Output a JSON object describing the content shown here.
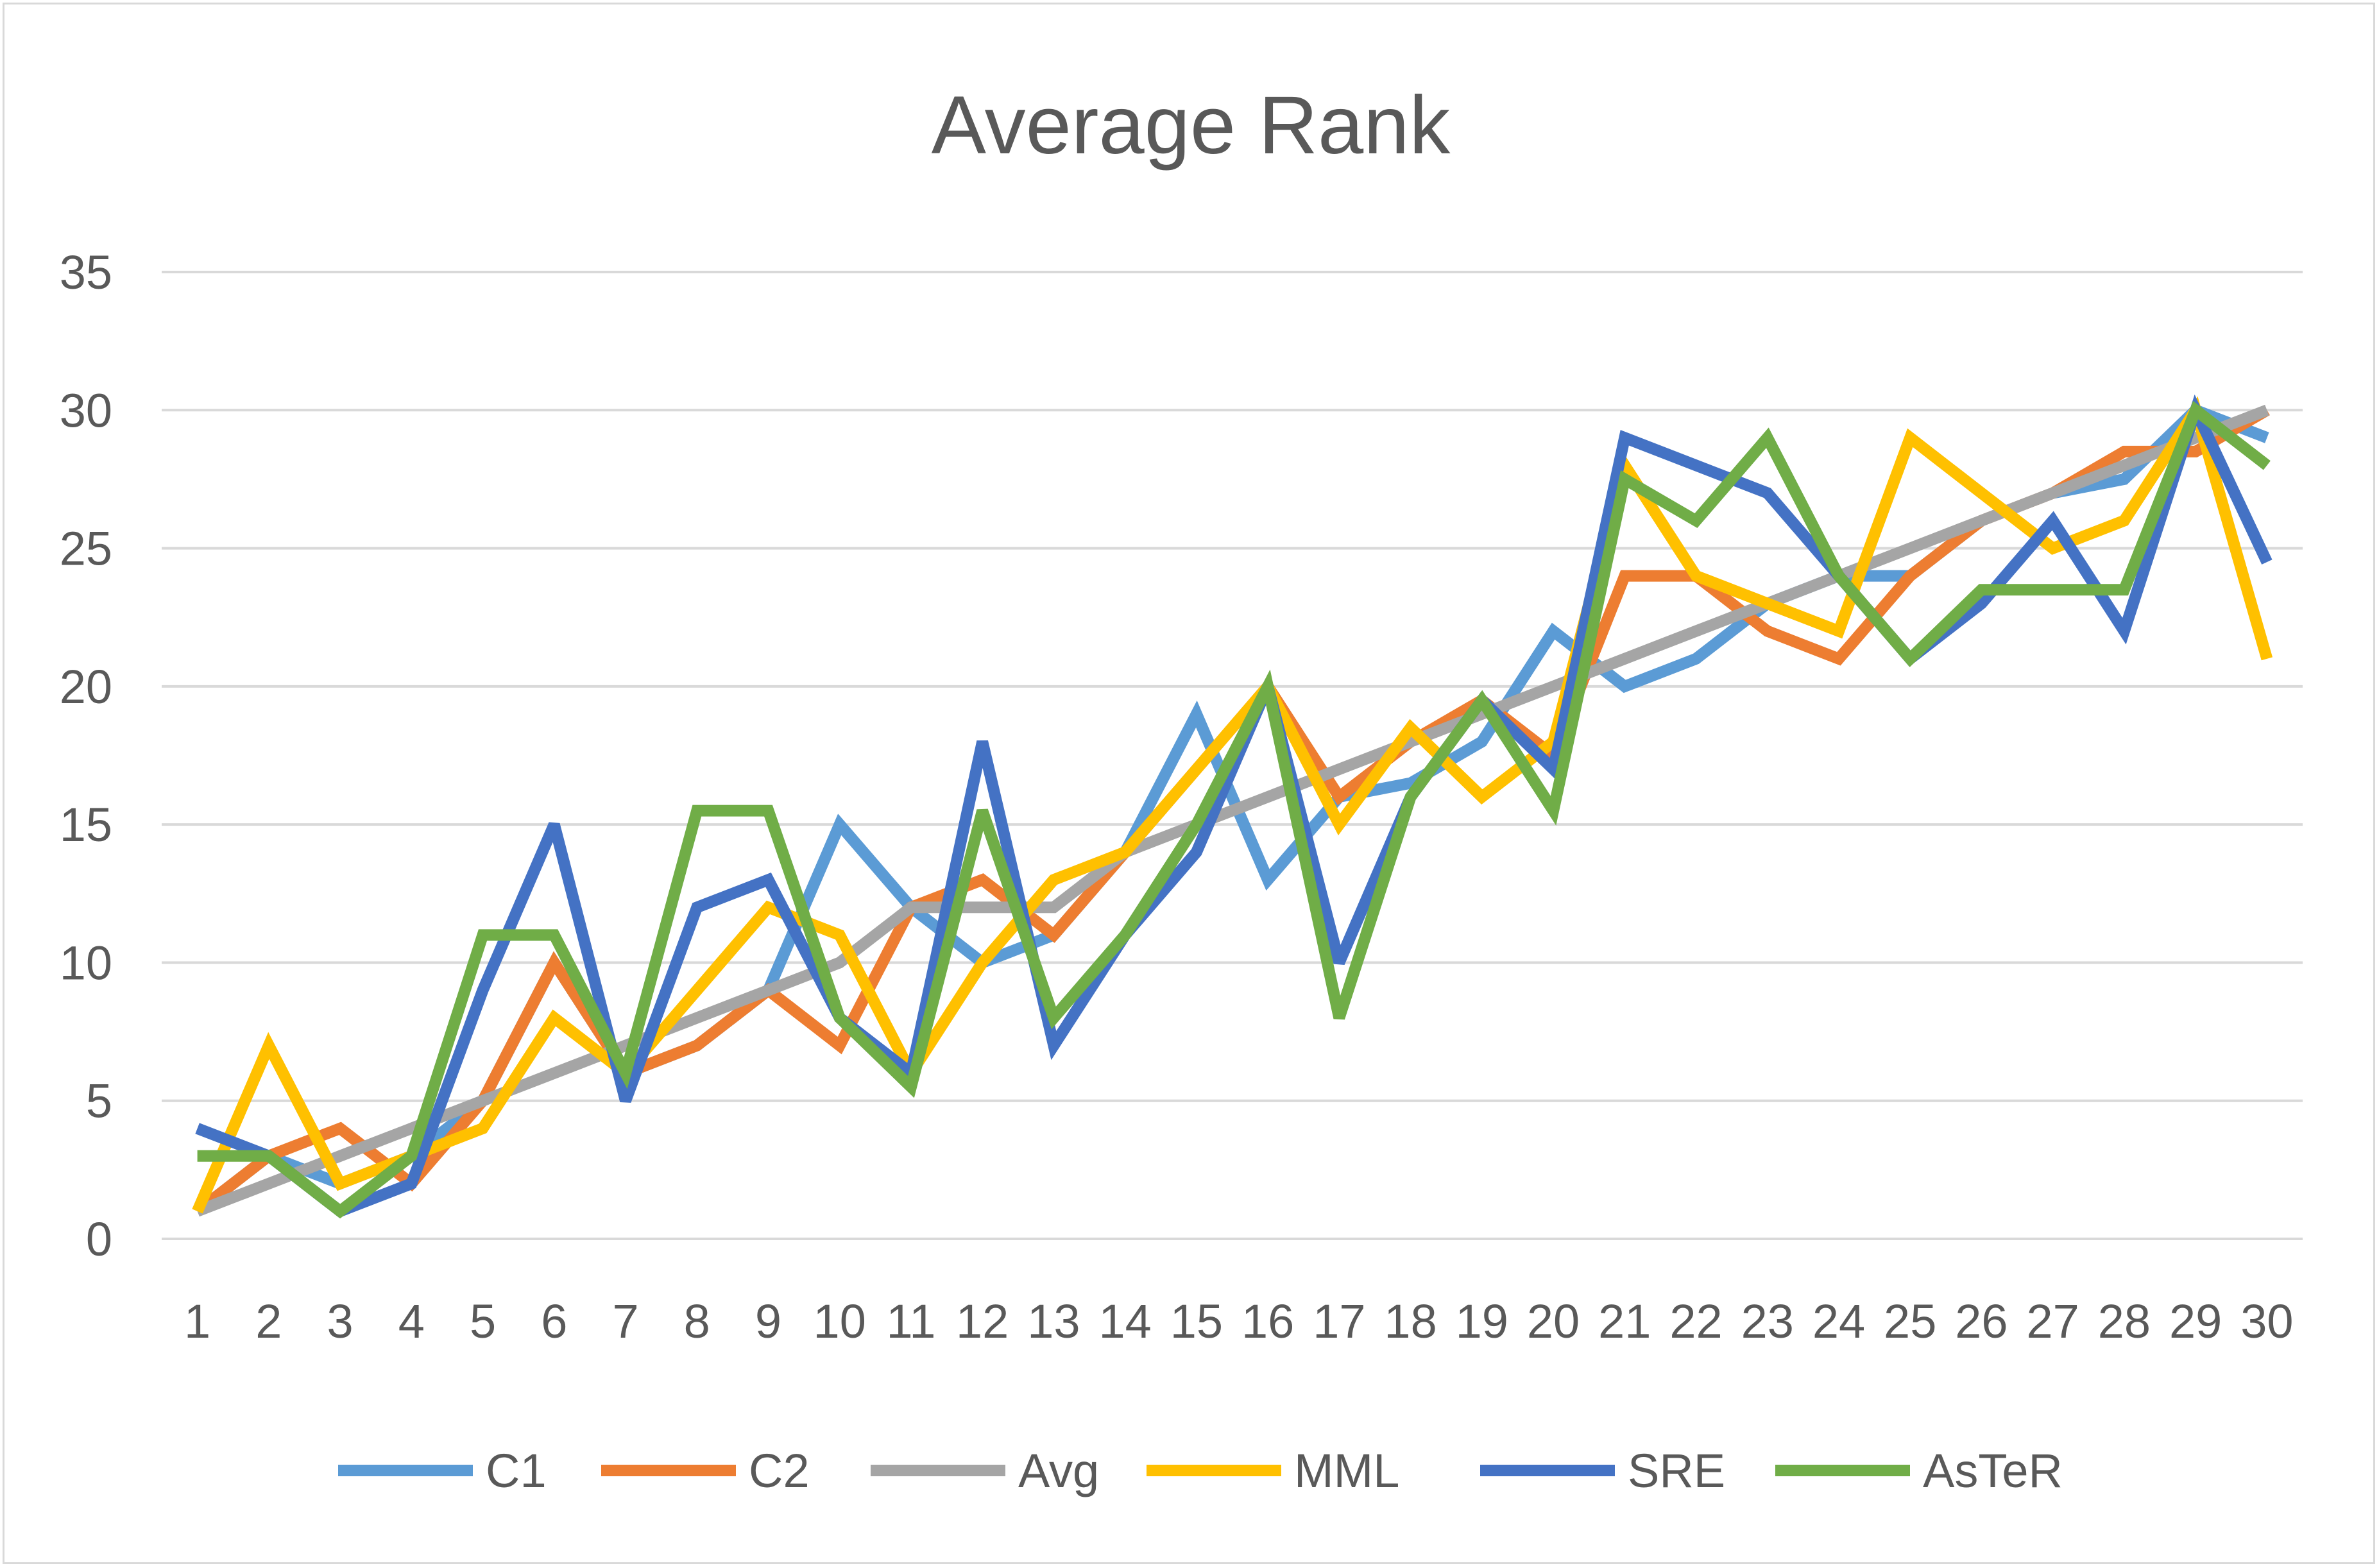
{
  "chart_data": {
    "type": "line",
    "title": "Average Rank",
    "xlabel": "",
    "ylabel": "",
    "x": [
      1,
      2,
      3,
      4,
      5,
      6,
      7,
      8,
      9,
      10,
      11,
      12,
      13,
      14,
      15,
      16,
      17,
      18,
      19,
      20,
      21,
      22,
      23,
      24,
      25,
      26,
      27,
      28,
      29,
      30
    ],
    "ylim": [
      0,
      35
    ],
    "yticks": [
      0,
      5,
      10,
      15,
      20,
      25,
      30,
      35
    ],
    "grid": "horizontal",
    "legend_position": "bottom",
    "series": [
      {
        "name": "C1",
        "color": "#5B9BD5",
        "values": [
          1,
          3,
          2,
          3,
          5,
          10,
          6,
          7,
          9,
          15,
          12,
          10,
          11,
          14,
          19,
          13,
          16,
          16.5,
          18,
          22,
          20,
          21,
          23,
          24,
          24,
          26,
          27,
          27.5,
          30,
          29
        ]
      },
      {
        "name": "C2",
        "color": "#ED7D31",
        "values": [
          1,
          3,
          4,
          2,
          5,
          10,
          6,
          7,
          9,
          7,
          12,
          13,
          11,
          14,
          17,
          20,
          16,
          18,
          19.5,
          17.5,
          24,
          24,
          22,
          21,
          24,
          26,
          27,
          28.5,
          28.5,
          30
        ]
      },
      {
        "name": "Avg",
        "color": "#A5A5A5",
        "values": [
          1,
          2,
          3,
          4,
          5,
          6,
          7,
          8,
          9,
          10,
          12,
          12,
          12,
          14,
          15,
          16,
          17,
          18,
          19,
          20,
          21,
          22,
          23,
          24,
          25,
          26,
          27,
          28,
          29,
          30
        ]
      },
      {
        "name": "MML",
        "color": "#FFC000",
        "values": [
          1,
          7,
          2,
          3,
          4,
          8,
          6,
          9,
          12,
          11,
          6,
          10,
          13,
          14,
          17,
          20,
          15,
          18.5,
          16,
          18,
          28,
          24,
          23,
          22,
          29,
          27,
          25,
          26,
          30,
          21
        ]
      },
      {
        "name": "SRE",
        "color": "#4472C4",
        "values": [
          4,
          3,
          1,
          2,
          9,
          15,
          5,
          12,
          13,
          8,
          6,
          18,
          7,
          11,
          14,
          20,
          10,
          16,
          19.5,
          17,
          29,
          28,
          27,
          24,
          21,
          23,
          26,
          22,
          30,
          24.5
        ]
      },
      {
        "name": "AsTeR",
        "color": "#70AD47",
        "values": [
          3,
          3,
          1,
          3,
          11,
          11,
          6,
          15.5,
          15.5,
          8,
          5.5,
          15.5,
          8,
          11,
          15,
          20,
          8,
          16,
          19.5,
          15.5,
          27.5,
          26,
          29,
          24,
          21,
          23.5,
          23.5,
          23.5,
          30,
          28
        ]
      }
    ]
  }
}
